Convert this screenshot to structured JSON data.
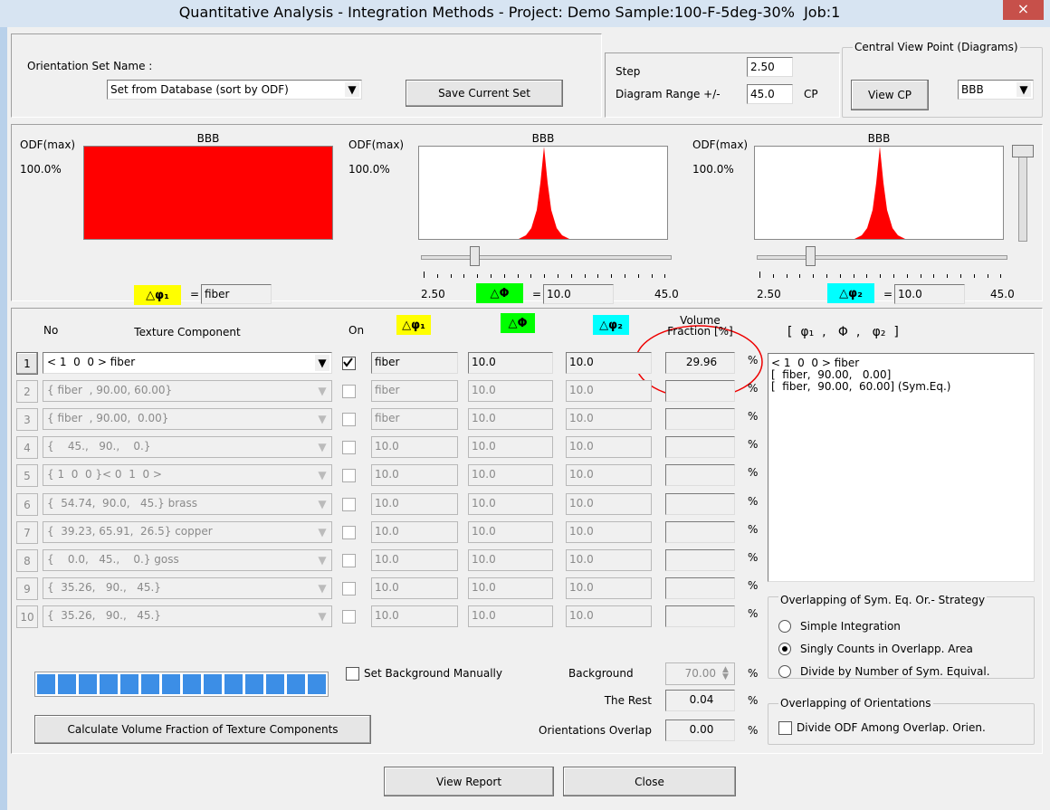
{
  "window": {
    "title": "Quantitative Analysis - Integration Methods - Project: Demo Sample:100-F-5deg-30%  Job:1",
    "close": "×"
  },
  "top_panel": {
    "orientation_label": "Orientation Set Name :",
    "orientation_set": "Set from Database (sort by ODF)",
    "save_button": "Save Current Set",
    "step_label": "Step",
    "step_value": "2.50",
    "range_label": "Diagram Range +/-",
    "range_value": "45.0",
    "range_unit": "CP"
  },
  "central_view": {
    "legend": "Central View Point (Diagrams)",
    "view_button": "View CP",
    "select": "BBB"
  },
  "diagrams": [
    {
      "title": "BBB",
      "odf_label": "ODF(max)",
      "odf_value": "100.0%",
      "delta": "△φ₁",
      "equals": "=",
      "delta_value": "fiber"
    },
    {
      "title": "BBB",
      "odf_label": "ODF(max)",
      "odf_value": "100.0%",
      "delta": "△Φ",
      "equals": "=",
      "delta_value": "10.0",
      "range_min": "2.50",
      "range_max": "45.0"
    },
    {
      "title": "BBB",
      "odf_label": "ODF(max)",
      "odf_value": "100.0%",
      "delta": "△φ₂",
      "equals": "=",
      "delta_value": "10.0",
      "range_min": "2.50",
      "range_max": "45.0"
    }
  ],
  "table": {
    "headers": {
      "no": "No",
      "component": "Texture Component",
      "on": "On",
      "phi1": "△φ₁",
      "Phi": "△Φ",
      "phi2": "△φ₂",
      "fraction_1": "Volume",
      "fraction_2": "Fraction [%]",
      "angles": "[  φ₁  ,   Φ  ,   φ₂  ]"
    },
    "percent_sign": "%",
    "rows": [
      {
        "no": "1",
        "component": "< 1  0  0 > fiber",
        "on": true,
        "enabled": true,
        "phi1": "fiber",
        "Phi": "10.0",
        "phi2": "10.0",
        "fraction": "29.96"
      },
      {
        "no": "2",
        "component": "{ fiber  , 90.00, 60.00}",
        "on": false,
        "enabled": false,
        "phi1": "fiber",
        "Phi": "10.0",
        "phi2": "10.0"
      },
      {
        "no": "3",
        "component": "{ fiber  , 90.00,  0.00}",
        "on": false,
        "enabled": false,
        "phi1": "fiber",
        "Phi": "10.0",
        "phi2": "10.0"
      },
      {
        "no": "4",
        "component": "{    45.,   90.,    0.}",
        "on": false,
        "enabled": false,
        "phi1": "10.0",
        "Phi": "10.0",
        "phi2": "10.0"
      },
      {
        "no": "5",
        "component": "{ 1  0  0 }< 0  1  0 >",
        "on": false,
        "enabled": false,
        "phi1": "10.0",
        "Phi": "10.0",
        "phi2": "10.0"
      },
      {
        "no": "6",
        "component": "{  54.74,  90.0,   45.} brass",
        "on": false,
        "enabled": false,
        "phi1": "10.0",
        "Phi": "10.0",
        "phi2": "10.0"
      },
      {
        "no": "7",
        "component": "{  39.23, 65.91,  26.5} copper",
        "on": false,
        "enabled": false,
        "phi1": "10.0",
        "Phi": "10.0",
        "phi2": "10.0"
      },
      {
        "no": "8",
        "component": "{    0.0,   45.,    0.} goss",
        "on": false,
        "enabled": false,
        "phi1": "10.0",
        "Phi": "10.0",
        "phi2": "10.0"
      },
      {
        "no": "9",
        "component": "{  35.26,   90.,   45.}",
        "on": false,
        "enabled": false,
        "phi1": "10.0",
        "Phi": "10.0",
        "phi2": "10.0"
      },
      {
        "no": "10",
        "component": "{  35.26,   90.,   45.}",
        "on": false,
        "enabled": false,
        "phi1": "10.0",
        "Phi": "10.0",
        "phi2": "10.0"
      }
    ]
  },
  "listbox": [
    "< 1  0  0 > fiber",
    "[  fiber,  90.00,   0.00]",
    "[  fiber,  90.00,  60.00] (Sym.Eq.)"
  ],
  "strategy": {
    "legend": "Overlapping of Sym. Eq. Or.- Strategy",
    "options": [
      "Simple Integration",
      "Singly Counts in Overlapp. Area",
      "Divide by Number of Sym. Equival."
    ],
    "selected": 1
  },
  "overlap_group": {
    "legend": "Overlapping of Orientations",
    "checkbox": "Divide ODF Among Overlap. Orien.",
    "checked": false
  },
  "bottom": {
    "set_background": "Set Background Manually",
    "set_background_checked": false,
    "background_label": "Background",
    "background_value": "70.00",
    "rest_label": "The Rest",
    "rest_value": "0.04",
    "overlap_label": "Orientations Overlap",
    "overlap_value": "0.00",
    "calculate_button": "Calculate Volume Fraction of Texture Components"
  },
  "buttons": {
    "report": "View Report",
    "close": "Close"
  }
}
